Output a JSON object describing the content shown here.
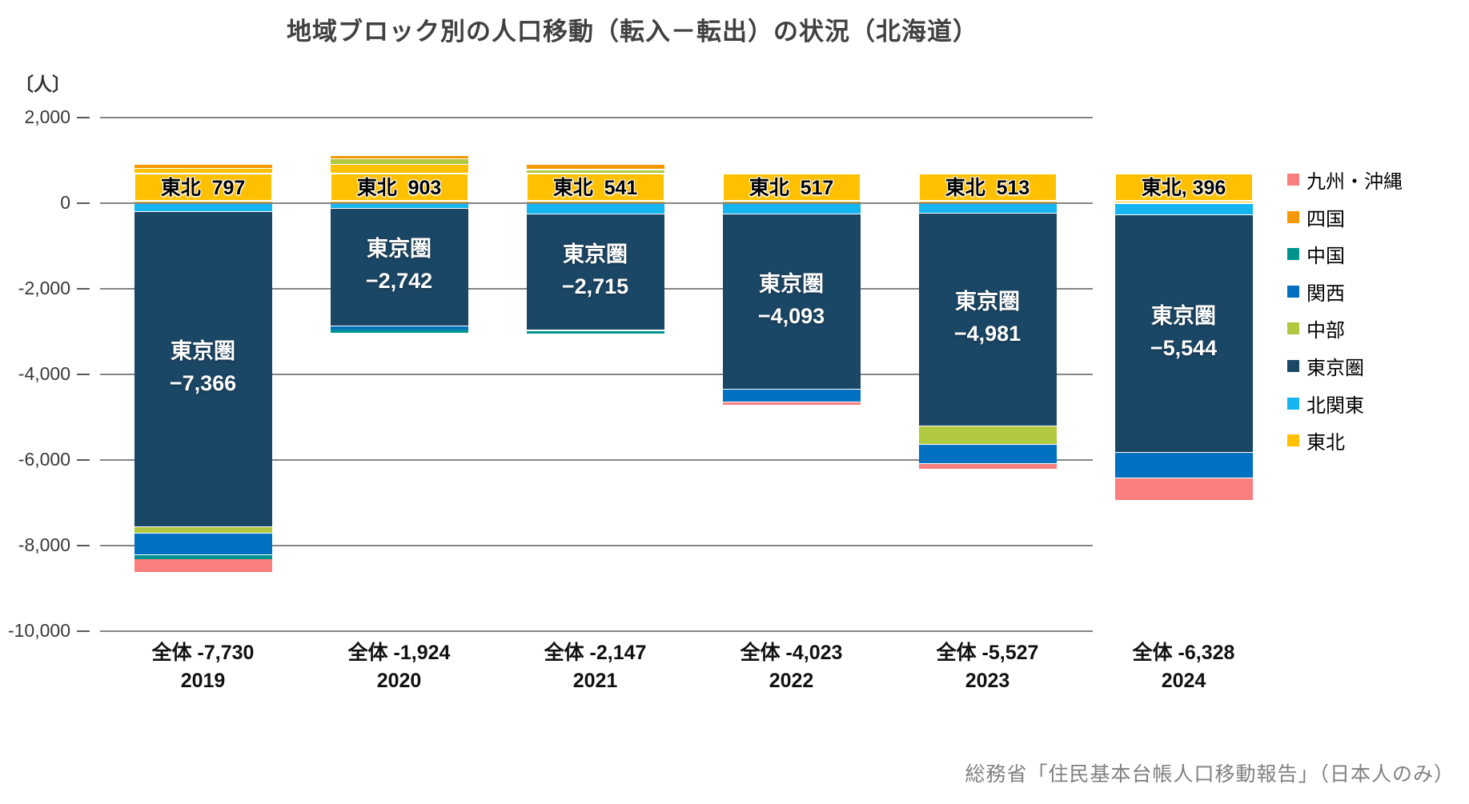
{
  "title": "地域ブロック別の人口移動（転入－転出）の状況（北海道）",
  "source": "総務省「住民基本台帳人口移動報告」（日本人のみ）",
  "chart_data": {
    "type": "bar",
    "stacked": true,
    "title": "地域ブロック別の人口移動（転入－転出）の状況（北海道）",
    "unit": "〔人〕",
    "grid": true,
    "legend_position": "right",
    "ylim": [
      -10000,
      2000
    ],
    "yticks": [
      {
        "label": "2,000",
        "value": 2000
      },
      {
        "label": "0",
        "value": 0
      },
      {
        "label": "-2,000",
        "value": -2000
      },
      {
        "label": "-4,000",
        "value": -4000
      },
      {
        "label": "-6,000",
        "value": -6000
      },
      {
        "label": "-8,000",
        "value": -8000
      },
      {
        "label": "-10,000",
        "value": -10000
      }
    ],
    "categories": [
      "2019",
      "2020",
      "2021",
      "2022",
      "2023",
      "2024"
    ],
    "category_totals": [
      "全体 -7,730",
      "全体 -1,924",
      "全体 -2,147",
      "全体 -4,023",
      "全体 -5,527",
      "全体 -6,328"
    ],
    "series": [
      {
        "name": "東北",
        "color": "#FFC000",
        "values": [
          797,
          903,
          541,
          517,
          513,
          396
        ]
      },
      {
        "name": "北関東",
        "color": "#15B5F0",
        "values": [
          -188,
          -110,
          -250,
          -250,
          -220,
          -270
        ]
      },
      {
        "name": "東京圏",
        "color": "#1B4766",
        "values": [
          -7366,
          -2742,
          -2715,
          -4093,
          -4981,
          -5544
        ]
      },
      {
        "name": "中部",
        "color": "#B1C940",
        "values": [
          -146,
          130,
          230,
          110,
          -430,
          55
        ]
      },
      {
        "name": "関西",
        "color": "#0070C0",
        "values": [
          -502,
          -90,
          0,
          -300,
          -450,
          -590
        ]
      },
      {
        "name": "中国",
        "color": "#009490",
        "values": [
          -105,
          -90,
          -73,
          0,
          90,
          90
        ]
      },
      {
        "name": "四国",
        "color": "#F39800",
        "values": [
          94,
          75,
          120,
          75,
          75,
          55
        ]
      },
      {
        "name": "九州・沖縄",
        "color": "#FA7E7E",
        "values": [
          -314,
          0,
          0,
          -82,
          -124,
          -520
        ]
      }
    ],
    "legend_order": [
      "九州・沖縄",
      "四国",
      "中国",
      "関西",
      "中部",
      "東京圏",
      "北関東",
      "東北"
    ],
    "tohoku_labels": [
      "東北  797",
      "東北  903",
      "東北  541",
      "東北  517",
      "東北  513",
      "東北, 396"
    ],
    "tokyo_labels": [
      {
        "name": "東京圏",
        "value": "−7,366"
      },
      {
        "name": "東京圏",
        "value": "−2,742"
      },
      {
        "name": "東京圏",
        "value": "−2,715"
      },
      {
        "name": "東京圏",
        "value": "−4,093"
      },
      {
        "name": "東京圏",
        "value": "−4,981"
      },
      {
        "name": "東京圏",
        "value": "−5,544"
      }
    ]
  }
}
